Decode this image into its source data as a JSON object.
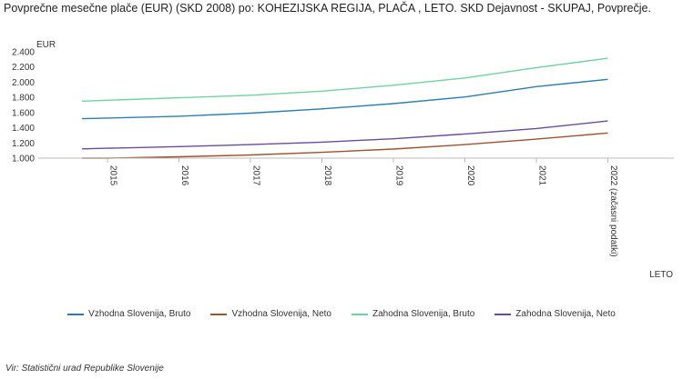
{
  "title": "Povprečne mesečne plače (EUR) (SKD 2008) po: KOHEZIJSKA REGIJA, PLAČA ,  LETO. SKD Dejavnost - SKUPAJ, Povprečje.",
  "source": "Vir: Statistični urad Republike Slovenije",
  "chart_data": {
    "type": "line",
    "title": "Povprečne mesečne plače (EUR) (SKD 2008) po: KOHEZIJSKA REGIJA, PLAČA ,  LETO. SKD Dejavnost - SKUPAJ, Povprečje.",
    "xlabel": "LETO",
    "ylabel": "EUR",
    "ylim": [
      1000,
      2400
    ],
    "yticks": [
      1000,
      1200,
      1400,
      1600,
      1800,
      2000,
      2200,
      2400
    ],
    "ytick_labels": [
      "1.000",
      "1.200",
      "1.400",
      "1.600",
      "1.800",
      "2.000",
      "2.200",
      "2.400"
    ],
    "categories": [
      "2015",
      "2016",
      "2017",
      "2018",
      "2019",
      "2020",
      "2021",
      "2022 (začasni podatki)"
    ],
    "grid": false,
    "legend_position": "bottom",
    "series": [
      {
        "name": "Vzhodna Slovenija, Bruto",
        "color": "#2a7fb0",
        "values": [
          1528,
          1552,
          1592,
          1648,
          1718,
          1805,
          1942,
          2038
        ]
      },
      {
        "name": "Vzhodna Slovenija, Neto",
        "color": "#a0522d",
        "values": [
          1000,
          1018,
          1042,
          1076,
          1120,
          1178,
          1250,
          1332
        ]
      },
      {
        "name": "Zahodna Slovenija, Bruto",
        "color": "#6fd3a0",
        "values": [
          1762,
          1795,
          1828,
          1882,
          1960,
          2055,
          2192,
          2315
        ]
      },
      {
        "name": "Zahodna Slovenija, Neto",
        "color": "#6a4c9c",
        "values": [
          1130,
          1152,
          1178,
          1210,
          1255,
          1318,
          1390,
          1490
        ]
      }
    ]
  }
}
